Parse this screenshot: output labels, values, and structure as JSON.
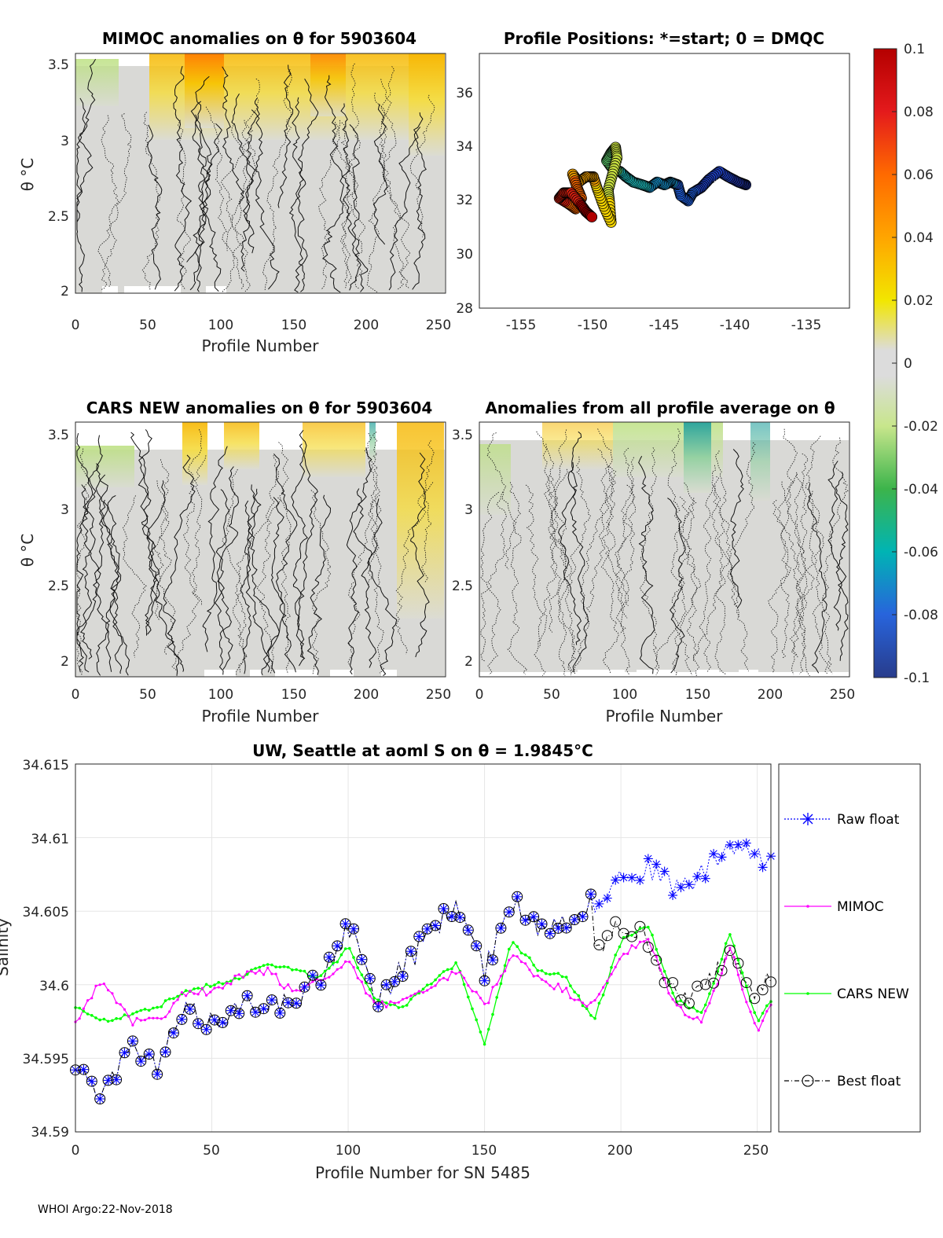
{
  "footer": "WHOI Argo:22-Nov-2018",
  "colors": {
    "raw": "#0000ff",
    "mimoc": "#ff00ff",
    "cars": "#00ff00",
    "best": "#000000",
    "neutral": "#d9d9d9"
  },
  "colorbar": {
    "ticks": [
      "0.1",
      "0.08",
      "0.06",
      "0.04",
      "0.02",
      "0",
      "-0.02",
      "-0.04",
      "-0.06",
      "-0.08",
      "-0.1"
    ],
    "range": [
      -0.1,
      0.1
    ]
  },
  "panel1": {
    "title": "MIMOC anomalies on θ  for 5903604",
    "xlabel": "Profile Number",
    "ylabel": "θ °C",
    "xticks": [
      "0",
      "50",
      "100",
      "150",
      "200",
      "250"
    ],
    "yticks": [
      "3.5",
      "3",
      "2.5",
      "2"
    ]
  },
  "panel2": {
    "title": "Profile Positions: *=start; 0 = DMQC",
    "xticks": [
      "-155",
      "-150",
      "-145",
      "-140",
      "-135"
    ],
    "yticks": [
      "36",
      "34",
      "32",
      "30",
      "28"
    ]
  },
  "panel3": {
    "title": "CARS NEW anomalies on θ for 5903604",
    "xlabel": "Profile Number",
    "ylabel": "θ °C",
    "xticks": [
      "0",
      "50",
      "100",
      "150",
      "200",
      "250"
    ],
    "yticks": [
      "3.5",
      "3",
      "2.5",
      "2"
    ]
  },
  "panel4": {
    "title": "Anomalies from all profile average on θ",
    "xlabel": "Profile Number",
    "xticks": [
      "0",
      "50",
      "100",
      "150",
      "200",
      "250"
    ],
    "yticks": [
      "3.5",
      "3",
      "2.5",
      "2"
    ]
  },
  "panel5": {
    "title": "UW, Seattle at aoml S on θ = 1.9845°C",
    "xlabel": "Profile Number for SN 5485",
    "ylabel": "Salinity",
    "xticks": [
      "0",
      "50",
      "100",
      "150",
      "200",
      "250"
    ],
    "yticks": [
      "34.615",
      "34.61",
      "34.605",
      "34.6",
      "34.595",
      "34.59"
    ]
  },
  "legend": {
    "raw": "Raw float",
    "mimoc": "MIMOC",
    "cars": "CARS NEW",
    "best": "Best float"
  },
  "chart_data": [
    {
      "type": "heatmap",
      "title": "MIMOC anomalies on θ  for 5903604",
      "xlabel": "Profile Number",
      "ylabel": "θ °C",
      "xlim": [
        0,
        255
      ],
      "ylim": [
        1.95,
        3.6
      ],
      "zlim": [
        -0.1,
        0.1
      ],
      "description_values": "mostly near 0 with positive anomalies (0.02-0.08) above 3.2 °C"
    },
    {
      "type": "scatter",
      "title": "Profile Positions: *=start; 0 = DMQC",
      "xlim": [
        -157,
        -132
      ],
      "ylim": [
        28,
        37.5
      ],
      "track": [
        [
          -139.0,
          32.6
        ],
        [
          -139.5,
          32.7
        ],
        [
          -140.2,
          32.9
        ],
        [
          -140.8,
          33.1
        ],
        [
          -141.5,
          32.8
        ],
        [
          -142.0,
          32.5
        ],
        [
          -142.6,
          32.3
        ],
        [
          -142.9,
          32.0
        ],
        [
          -143.4,
          32.2
        ],
        [
          -143.6,
          32.6
        ],
        [
          -144.1,
          32.7
        ],
        [
          -144.5,
          32.6
        ],
        [
          -145.0,
          32.7
        ],
        [
          -145.5,
          32.5
        ],
        [
          -146.0,
          32.6
        ],
        [
          -146.6,
          32.7
        ],
        [
          -147.1,
          32.9
        ],
        [
          -147.5,
          33.1
        ],
        [
          -148.0,
          33.2
        ],
        [
          -148.4,
          33.5
        ],
        [
          -148.1,
          33.8
        ],
        [
          -147.8,
          34.0
        ],
        [
          -147.7,
          33.6
        ],
        [
          -148.0,
          33.0
        ],
        [
          -148.3,
          32.4
        ],
        [
          -148.2,
          31.9
        ],
        [
          -148.1,
          31.2
        ],
        [
          -148.6,
          31.8
        ],
        [
          -149.0,
          32.4
        ],
        [
          -149.3,
          32.9
        ],
        [
          -149.8,
          32.9
        ],
        [
          -150.3,
          32.7
        ],
        [
          -150.7,
          33.0
        ],
        [
          -150.4,
          32.5
        ],
        [
          -150.1,
          32.1
        ],
        [
          -150.5,
          31.7
        ],
        [
          -151.0,
          31.9
        ],
        [
          -151.6,
          32.1
        ],
        [
          -151.3,
          32.3
        ],
        [
          -150.8,
          32.3
        ],
        [
          -150.2,
          31.9
        ],
        [
          -149.8,
          31.6
        ],
        [
          -149.4,
          31.4
        ]
      ],
      "start": [
        -140.8,
        32.6
      ]
    },
    {
      "type": "heatmap",
      "title": "CARS NEW anomalies on θ for 5903604",
      "xlabel": "Profile Number",
      "ylabel": "θ °C",
      "xlim": [
        0,
        255
      ],
      "ylim": [
        1.9,
        3.6
      ],
      "zlim": [
        -0.1,
        0.1
      ]
    },
    {
      "type": "heatmap",
      "title": "Anomalies from all profile average on θ",
      "xlabel": "Profile Number",
      "xlim": [
        0,
        255
      ],
      "ylim": [
        1.9,
        3.6
      ],
      "zlim": [
        -0.1,
        0.1
      ]
    },
    {
      "type": "line",
      "title": "UW, Seattle at aoml S on θ = 1.9845°C",
      "xlabel": "Profile Number for SN 5485",
      "ylabel": "Salinity",
      "xlim": [
        0,
        255
      ],
      "ylim": [
        34.59,
        34.615
      ],
      "x": [
        0,
        10,
        20,
        30,
        40,
        50,
        60,
        70,
        80,
        90,
        100,
        110,
        120,
        130,
        140,
        150,
        160,
        170,
        180,
        190,
        200,
        210,
        220,
        230,
        240,
        250,
        255
      ],
      "series": [
        {
          "name": "Raw float",
          "values": [
            34.5945,
            34.5928,
            34.5955,
            34.5945,
            34.5982,
            34.5975,
            34.5985,
            34.599,
            34.5985,
            34.6005,
            34.604,
            34.599,
            34.601,
            34.6035,
            34.6055,
            34.601,
            34.6055,
            34.604,
            34.6045,
            34.6055,
            34.6075,
            34.608,
            34.6065,
            34.6075,
            34.6095,
            34.6085,
            34.6085
          ]
        },
        {
          "name": "MIMOC",
          "values": [
            34.5975,
            34.6005,
            34.5975,
            34.5975,
            34.5995,
            34.5995,
            34.6005,
            34.601,
            34.5995,
            34.6005,
            34.6015,
            34.5985,
            34.599,
            34.5995,
            34.601,
            34.5985,
            34.602,
            34.6005,
            34.5995,
            34.5985,
            34.602,
            34.603,
            34.5985,
            34.5975,
            34.6025,
            34.5965,
            34.5985
          ]
        },
        {
          "name": "CARS NEW",
          "values": [
            34.5985,
            34.5975,
            34.598,
            34.5985,
            34.5995,
            34.6,
            34.6005,
            34.6015,
            34.601,
            34.6005,
            34.6025,
            34.599,
            34.5985,
            34.6,
            34.6015,
            34.596,
            34.603,
            34.601,
            34.6005,
            34.5975,
            34.603,
            34.604,
            34.599,
            34.598,
            34.6035,
            34.5975,
            34.599
          ]
        },
        {
          "name": "Best float",
          "values": [
            34.5945,
            34.5928,
            34.5955,
            34.5945,
            34.5982,
            34.5975,
            34.5985,
            34.599,
            34.5985,
            34.6005,
            34.604,
            34.599,
            34.601,
            34.6035,
            34.6055,
            34.601,
            34.6055,
            34.604,
            34.6045,
            34.602,
            34.604,
            34.603,
            34.599,
            34.5995,
            34.6025,
            34.5995,
            34.6005
          ]
        }
      ]
    }
  ]
}
